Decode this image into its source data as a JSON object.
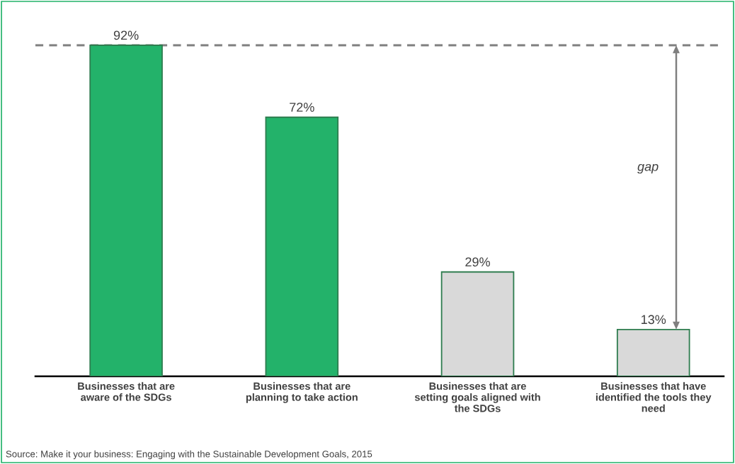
{
  "chart_data": {
    "type": "bar",
    "categories": [
      "Businesses that are\naware of the SDGs",
      "Businesses that are\nplanning to take action",
      "Businesses that are\nsetting goals aligned with\nthe SDGs",
      "Businesses that have\nidentified the tools they\nneed"
    ],
    "values": [
      92,
      72,
      29,
      13
    ],
    "value_labels": [
      "92%",
      "72%",
      "29%",
      "13%"
    ],
    "colors": [
      "#23b26a",
      "#23b26a",
      "#d9d9d9",
      "#d9d9d9"
    ],
    "ref_lines": [
      {
        "axis": "y",
        "value": 92,
        "color": "#7f7f7f",
        "line_style": "dashed"
      }
    ],
    "annotations": [
      "gap",
      "Source: Make it your business: Engaging with the Sustainable Development Goals, 2015"
    ],
    "grid": false
  }
}
